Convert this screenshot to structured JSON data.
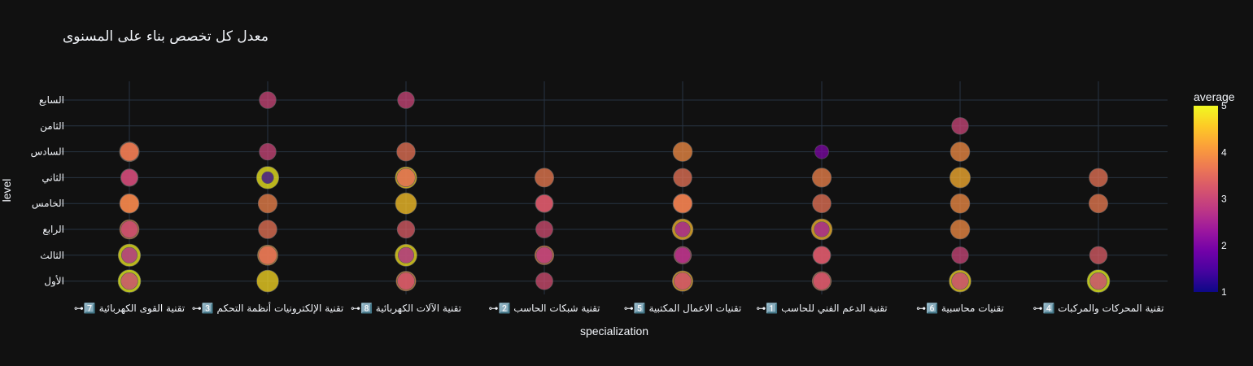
{
  "chart_data": {
    "type": "scatter",
    "title": "معدل كل تخصص بناء على المسنوى",
    "xlabel": "specialization",
    "ylabel": "level",
    "colorbar": {
      "title": "average",
      "ticks": [
        1,
        2,
        3,
        4,
        5
      ],
      "range": [
        1,
        5
      ],
      "colorscale": "plasma"
    },
    "grid": true,
    "categories": [
      "⊶7️⃣ تقنية القوى الكهربائية",
      "⊶3️⃣ تقنية الإلكترونيات أنظمة التحكم",
      "⊶8️⃣ تقنية الآلات الكهربائية",
      "⊶2️⃣ تقنية شبكات الحاسب",
      "⊶5️⃣ تقنيات الاعمال المكتبية",
      "⊶1️⃣ تقنية الدعم الفني للحاسب",
      "⊶6️⃣ تقنيات محاسبية",
      "⊶4️⃣ تقنية المحركات والمركبات"
    ],
    "levels": [
      "الأول",
      "الثالث",
      "الرابع",
      "الخامس",
      "الثاني",
      "السادس",
      "الثامن",
      "السابع"
    ],
    "points": [
      {
        "x": 0,
        "y": "الأول",
        "value": 3.0
      },
      {
        "x": 0,
        "y": "الأول",
        "value": 5.0
      },
      {
        "x": 0,
        "y": "الثالث",
        "value": 2.6
      },
      {
        "x": 0,
        "y": "الثالث",
        "value": 4.9
      },
      {
        "x": 0,
        "y": "الرابع",
        "value": 3.0
      },
      {
        "x": 0,
        "y": "الرابع",
        "value": 3.9
      },
      {
        "x": 0,
        "y": "الخامس",
        "value": 3.9
      },
      {
        "x": 0,
        "y": "الخامس",
        "value": 3.8
      },
      {
        "x": 0,
        "y": "الثاني",
        "value": 3.2
      },
      {
        "x": 0,
        "y": "الثاني",
        "value": 3.0
      },
      {
        "x": 0,
        "y": "السادس",
        "value": 3.6
      },
      {
        "x": 0,
        "y": "السادس",
        "value": 4.0
      },
      {
        "x": 1,
        "y": "الأول",
        "value": 4.7
      },
      {
        "x": 1,
        "y": "الثالث",
        "value": 3.5
      },
      {
        "x": 1,
        "y": "الثالث",
        "value": 4.2
      },
      {
        "x": 1,
        "y": "الرابع",
        "value": 3.6
      },
      {
        "x": 1,
        "y": "الخامس",
        "value": 3.8
      },
      {
        "x": 1,
        "y": "الثاني",
        "value": 1.3
      },
      {
        "x": 1,
        "y": "الثاني",
        "value": 4.9
      },
      {
        "x": 1,
        "y": "السادس",
        "value": 3.0
      },
      {
        "x": 1,
        "y": "السابع",
        "value": 3.0
      },
      {
        "x": 2,
        "y": "الأول",
        "value": 3.1
      },
      {
        "x": 2,
        "y": "الأول",
        "value": 4.0
      },
      {
        "x": 2,
        "y": "الثالث",
        "value": 2.6
      },
      {
        "x": 2,
        "y": "الثالث",
        "value": 4.8
      },
      {
        "x": 2,
        "y": "الرابع",
        "value": 3.3
      },
      {
        "x": 2,
        "y": "الخامس",
        "value": 4.5
      },
      {
        "x": 2,
        "y": "الثاني",
        "value": 3.5
      },
      {
        "x": 2,
        "y": "الثاني",
        "value": 4.6
      },
      {
        "x": 2,
        "y": "السادس",
        "value": 3.6
      },
      {
        "x": 2,
        "y": "السابع",
        "value": 3.0
      },
      {
        "x": 3,
        "y": "الأول",
        "value": 3.1
      },
      {
        "x": 3,
        "y": "الثالث",
        "value": 2.8
      },
      {
        "x": 3,
        "y": "الثالث",
        "value": 3.8
      },
      {
        "x": 3,
        "y": "الرابع",
        "value": 3.1
      },
      {
        "x": 3,
        "y": "الخامس",
        "value": 3.2
      },
      {
        "x": 3,
        "y": "الخامس",
        "value": 3.4
      },
      {
        "x": 3,
        "y": "الثاني",
        "value": 3.7
      },
      {
        "x": 4,
        "y": "الأول",
        "value": 3.1
      },
      {
        "x": 4,
        "y": "الأول",
        "value": 4.3
      },
      {
        "x": 4,
        "y": "الثالث",
        "value": 2.6
      },
      {
        "x": 4,
        "y": "الثالث",
        "value": 3.3
      },
      {
        "x": 4,
        "y": "الرابع",
        "value": 2.4
      },
      {
        "x": 4,
        "y": "الرابع",
        "value": 4.4
      },
      {
        "x": 4,
        "y": "الخامس",
        "value": 3.9
      },
      {
        "x": 4,
        "y": "الخامس",
        "value": 3.7
      },
      {
        "x": 4,
        "y": "الثاني",
        "value": 3.6
      },
      {
        "x": 4,
        "y": "السادس",
        "value": 3.9
      },
      {
        "x": 5,
        "y": "الأول",
        "value": 3.1
      },
      {
        "x": 5,
        "y": "الأول",
        "value": 3.8
      },
      {
        "x": 5,
        "y": "الثالث",
        "value": 3.2
      },
      {
        "x": 5,
        "y": "الثالث",
        "value": 3.4
      },
      {
        "x": 5,
        "y": "الرابع",
        "value": 2.4
      },
      {
        "x": 5,
        "y": "الرابع",
        "value": 4.4
      },
      {
        "x": 5,
        "y": "الخامس",
        "value": 3.6
      },
      {
        "x": 5,
        "y": "الثاني",
        "value": 3.8
      },
      {
        "x": 5,
        "y": "السادس",
        "value": 2.0
      },
      {
        "x": 6,
        "y": "الأول",
        "value": 3.0
      },
      {
        "x": 6,
        "y": "الأول",
        "value": 4.7
      },
      {
        "x": 6,
        "y": "الثالث",
        "value": 3.0
      },
      {
        "x": 6,
        "y": "الرابع",
        "value": 3.9
      },
      {
        "x": 6,
        "y": "الخامس",
        "value": 3.9
      },
      {
        "x": 6,
        "y": "الثاني",
        "value": 4.3
      },
      {
        "x": 6,
        "y": "السادس",
        "value": 3.9
      },
      {
        "x": 6,
        "y": "الثامن",
        "value": 3.0
      },
      {
        "x": 7,
        "y": "الأول",
        "value": 5.0
      },
      {
        "x": 7,
        "y": "الأول",
        "value": 3.0
      },
      {
        "x": 7,
        "y": "الثالث",
        "value": 3.3
      },
      {
        "x": 7,
        "y": "الخامس",
        "value": 3.7
      },
      {
        "x": 7,
        "y": "الثاني",
        "value": 3.6
      }
    ]
  }
}
